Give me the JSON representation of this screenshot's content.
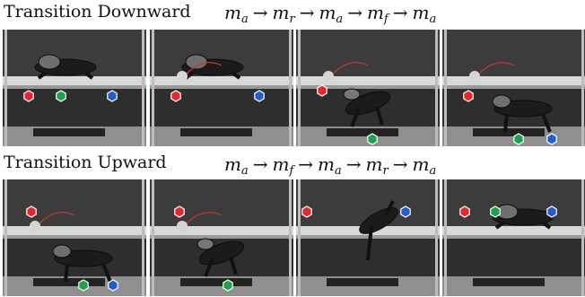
{
  "rows": [
    {
      "title": "Transition Downward",
      "sequence": [
        {
          "base": "m",
          "sub": "a"
        },
        {
          "base": "m",
          "sub": "r"
        },
        {
          "base": "m",
          "sub": "a"
        },
        {
          "base": "m",
          "sub": "f"
        },
        {
          "base": "m",
          "sub": "a"
        }
      ],
      "arrow": "→"
    },
    {
      "title": "Transition Upward",
      "sequence": [
        {
          "base": "m",
          "sub": "a"
        },
        {
          "base": "m",
          "sub": "f"
        },
        {
          "base": "m",
          "sub": "a"
        },
        {
          "base": "m",
          "sub": "r"
        },
        {
          "base": "m",
          "sub": "a"
        }
      ],
      "arrow": "→"
    }
  ],
  "marker_colors": {
    "red": "#e8262e",
    "green": "#19a34a",
    "blue": "#1f5fd0"
  }
}
